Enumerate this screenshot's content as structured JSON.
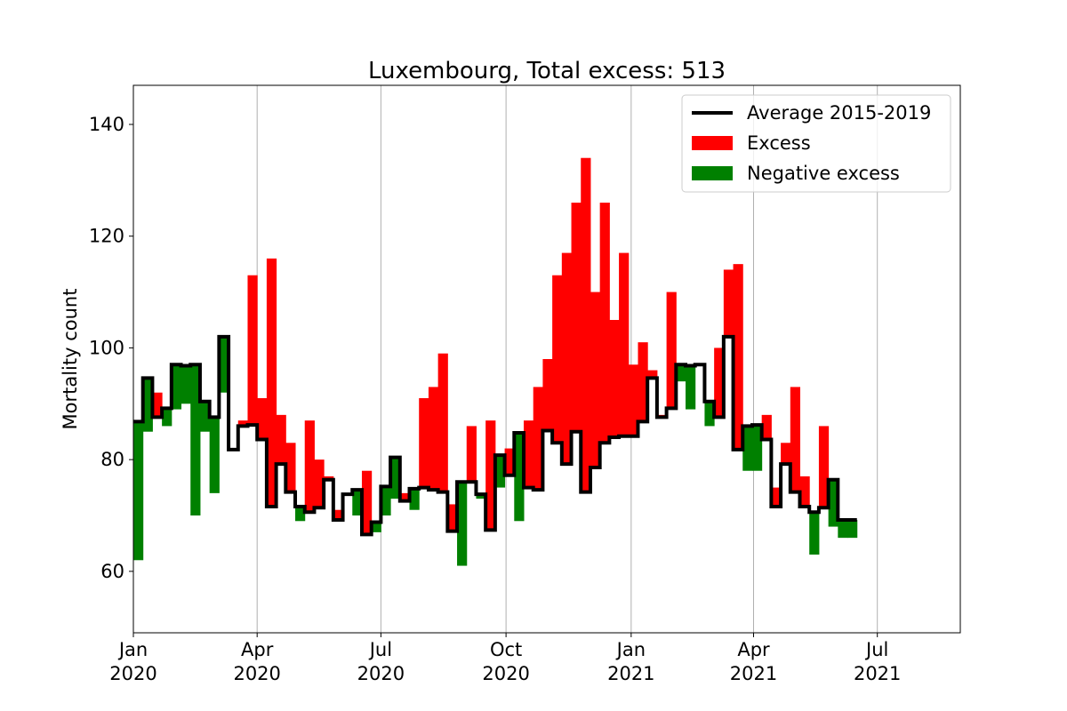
{
  "chart_data": {
    "type": "bar",
    "title": "Luxembourg, Total excess: 513",
    "xlabel": "",
    "ylabel": "Mortality count",
    "xlim": [
      "2020-01-01",
      "2021-08-31"
    ],
    "ylim": [
      49,
      147
    ],
    "grid": {
      "x": true,
      "y": false
    },
    "legend_position": "top-right",
    "yticks": [
      60,
      80,
      100,
      120,
      140
    ],
    "xticks": [
      {
        "date": "2020-01-01",
        "line1": "Jan",
        "line2": "2020"
      },
      {
        "date": "2020-04-01",
        "line1": "Apr",
        "line2": "2020"
      },
      {
        "date": "2020-07-01",
        "line1": "Jul",
        "line2": "2020"
      },
      {
        "date": "2020-10-01",
        "line1": "Oct",
        "line2": "2020"
      },
      {
        "date": "2021-01-01",
        "line1": "Jan",
        "line2": "2021"
      },
      {
        "date": "2021-04-01",
        "line1": "Apr",
        "line2": "2021"
      },
      {
        "date": "2021-07-01",
        "line1": "Jul",
        "line2": "2021"
      }
    ],
    "colors": {
      "average": "#000000",
      "excess": "#ff0000",
      "negative_excess": "#008000"
    },
    "legend": [
      {
        "label": "Average 2015-2019",
        "kind": "line",
        "color": "#000000"
      },
      {
        "label": "Excess",
        "kind": "patch",
        "color": "#ff0000"
      },
      {
        "label": "Negative excess",
        "kind": "patch",
        "color": "#008000"
      }
    ],
    "week_start_dates": [
      "2020-01-01",
      "2020-01-08",
      "2020-01-15",
      "2020-01-22",
      "2020-01-29",
      "2020-02-05",
      "2020-02-12",
      "2020-02-19",
      "2020-02-26",
      "2020-03-04",
      "2020-03-11",
      "2020-03-18",
      "2020-03-25",
      "2020-04-01",
      "2020-04-08",
      "2020-04-15",
      "2020-04-22",
      "2020-04-29",
      "2020-05-06",
      "2020-05-13",
      "2020-05-20",
      "2020-05-27",
      "2020-06-03",
      "2020-06-10",
      "2020-06-17",
      "2020-06-24",
      "2020-07-01",
      "2020-07-08",
      "2020-07-15",
      "2020-07-22",
      "2020-07-29",
      "2020-08-05",
      "2020-08-12",
      "2020-08-19",
      "2020-08-26",
      "2020-09-02",
      "2020-09-09",
      "2020-09-16",
      "2020-09-23",
      "2020-09-30",
      "2020-10-07",
      "2020-10-14",
      "2020-10-21",
      "2020-10-28",
      "2020-11-04",
      "2020-11-11",
      "2020-11-18",
      "2020-11-25",
      "2020-12-02",
      "2020-12-09",
      "2020-12-16",
      "2020-12-23",
      "2020-12-30",
      "2021-01-06",
      "2021-01-13",
      "2021-01-20",
      "2021-01-27",
      "2021-02-03",
      "2021-02-10",
      "2021-02-17",
      "2021-02-24",
      "2021-03-03",
      "2021-03-10",
      "2021-03-17",
      "2021-03-24",
      "2021-03-31",
      "2021-04-07",
      "2021-04-14",
      "2021-04-21",
      "2021-04-28",
      "2021-05-05",
      "2021-05-12",
      "2021-05-19",
      "2021-05-26",
      "2021-06-02",
      "2021-06-09"
    ],
    "series": [
      {
        "name": "Average 2015-2019",
        "values": [
          86.8,
          94.6,
          87.6,
          89.2,
          97.0,
          96.8,
          97.0,
          90.4,
          87.6,
          102.0,
          81.8,
          86.0,
          86.2,
          83.6,
          71.6,
          79.2,
          74.2,
          71.6,
          70.6,
          71.4,
          76.4,
          69.2,
          73.8,
          74.6,
          66.6,
          68.8,
          75.2,
          80.4,
          72.6,
          74.8,
          75.0,
          74.6,
          74.2,
          67.2,
          76.0,
          76.0,
          73.8,
          67.4,
          80.8,
          77.2,
          84.8,
          75.0,
          74.6,
          85.2,
          83.0,
          79.2,
          85.0,
          74.2,
          78.6,
          83.0,
          84.0,
          84.2,
          84.2,
          86.8,
          94.6,
          87.6,
          89.2,
          97.0,
          96.8,
          97.0,
          90.4,
          87.6,
          102.0,
          81.8,
          86.0,
          86.2,
          83.6,
          71.6,
          79.2,
          74.2,
          71.6,
          70.6,
          71.4,
          76.4,
          69.2,
          69.2
        ]
      },
      {
        "name": "Observed",
        "values": [
          62,
          85,
          92,
          86,
          89,
          90,
          70,
          85,
          74,
          92,
          82,
          87,
          113,
          91,
          116,
          88,
          83,
          69,
          87,
          80,
          77,
          71,
          74,
          70,
          78,
          67,
          70,
          73,
          74,
          71,
          91,
          93,
          99,
          72,
          61,
          86,
          73,
          87,
          75,
          82,
          69,
          87,
          93,
          98,
          113,
          117,
          126,
          134,
          110,
          126,
          105,
          117,
          97,
          101,
          96,
          88,
          110,
          94,
          89,
          97,
          86,
          100,
          114,
          115,
          78,
          78,
          88,
          75,
          83,
          93,
          77,
          63,
          86,
          68,
          66,
          66
        ]
      }
    ]
  }
}
